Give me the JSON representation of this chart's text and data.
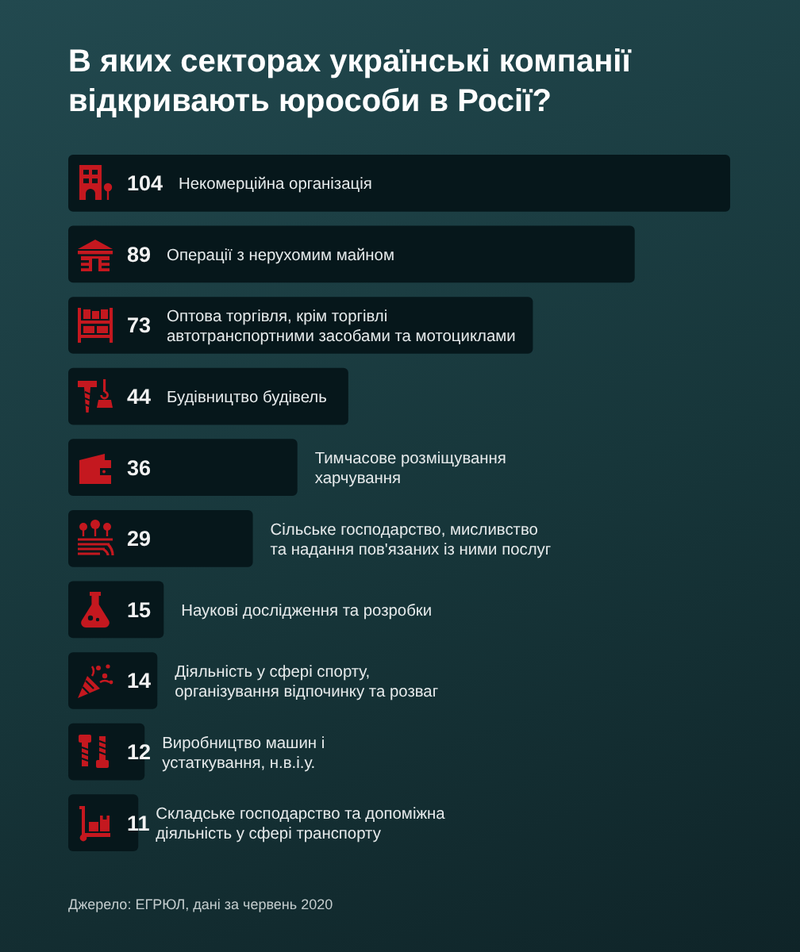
{
  "chart_data": {
    "type": "bar",
    "orientation": "horizontal",
    "title": "В яких секторах українські компанії відкривають юрособи в Росії?",
    "categories": [
      "Некомерційна організація",
      "Операції з нерухомим майном",
      "Оптова торгівля, крім торгівлі\nавтотранспортними засобами та мотоциклами",
      "Будівництво будівель",
      "Тимчасове розміщування\nхарчування",
      "Сільське господарство, мисливство\nта надання пов'язаних із ними послуг",
      "Наукові дослідження та розробки",
      "Діяльність у сфері спорту,\nорганізування відпочинку та розваг",
      "Виробництво машин і\nустаткування, н.в.і.у.",
      "Складське господарство та допоміжна\nдіяльність у сфері транспорту"
    ],
    "values": [
      104,
      89,
      73,
      44,
      36,
      29,
      15,
      14,
      12,
      11
    ],
    "color": "#06171b",
    "data_labels": true,
    "annotations": [
      "Джерело: ЕГРЮЛ, дані за червень 2020"
    ]
  }
}
